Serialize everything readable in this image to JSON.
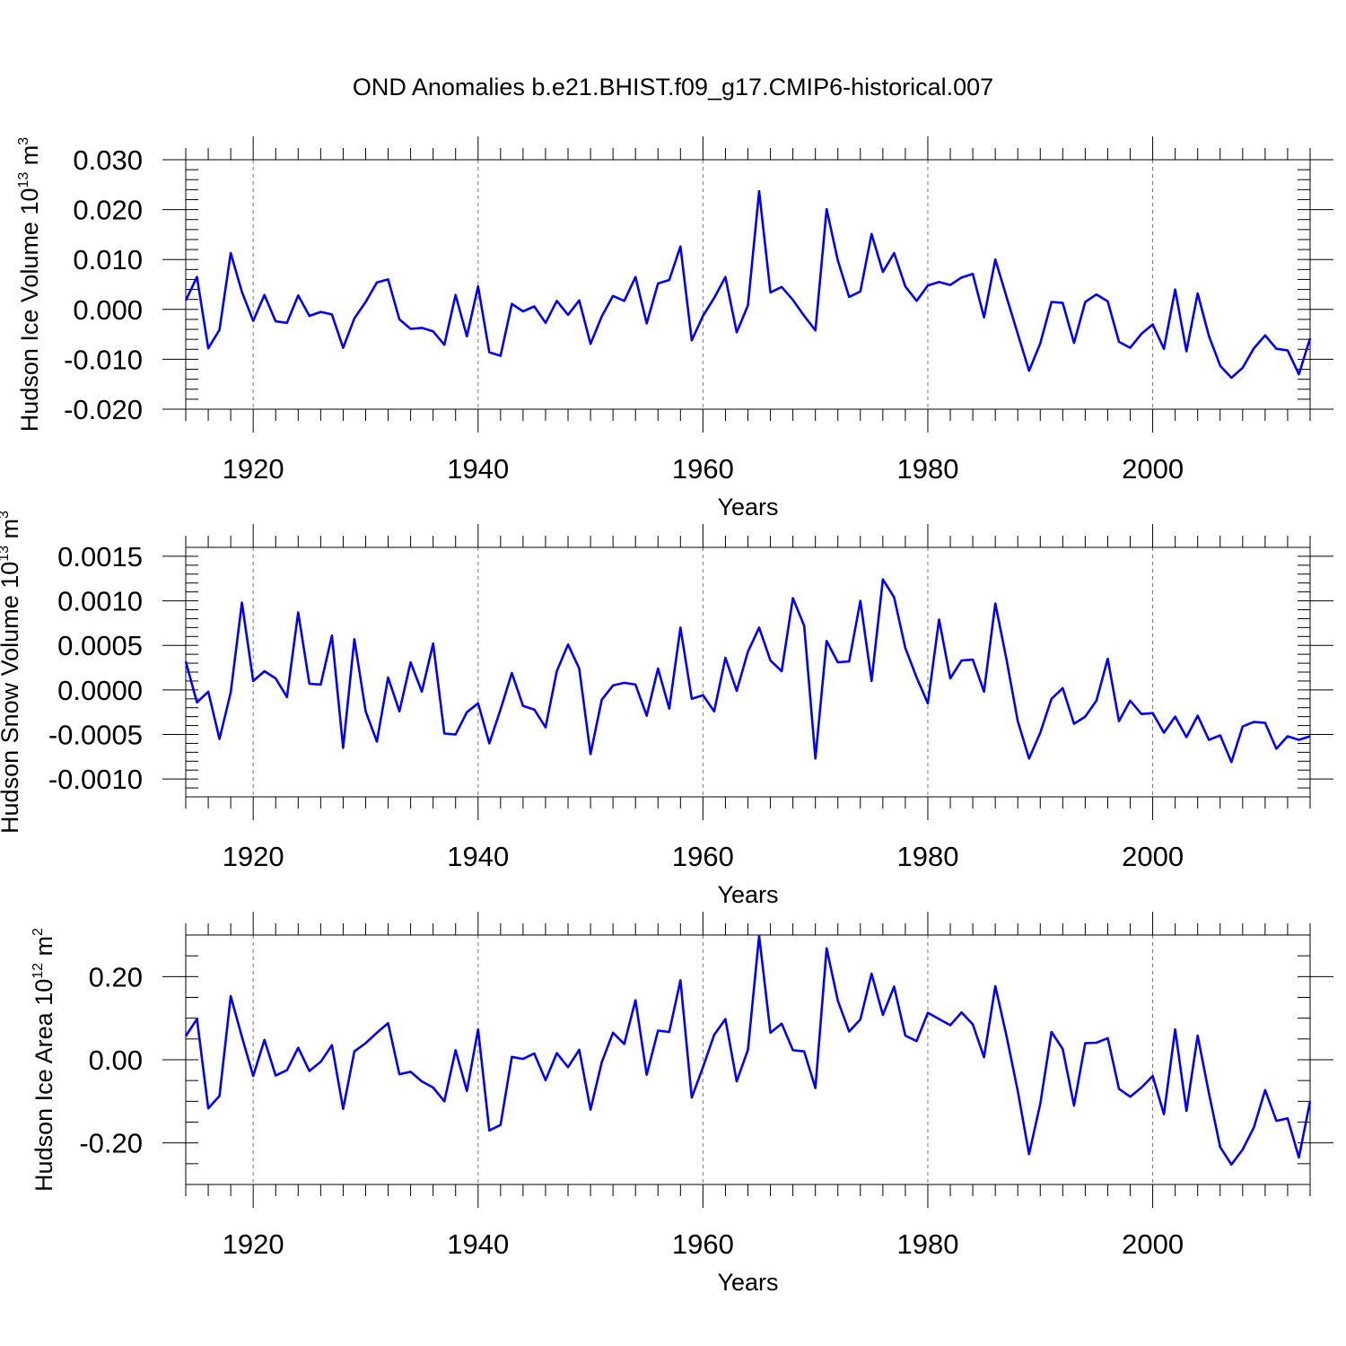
{
  "title": "OND Anomalies b.e21.BHIST.f09_g17.CMIP6-historical.007",
  "chart_data": [
    {
      "type": "line",
      "id": "ice-volume",
      "ylabel_main": "Hudson Ice Volume 10",
      "ylabel_sup": "13",
      "ylabel_unit": " m",
      "ylabel_unit_sup": "3",
      "xlabel": "Years",
      "xlim": [
        1914,
        2014
      ],
      "ylim": [
        -0.02,
        0.03
      ],
      "xticks": [
        1920,
        1940,
        1960,
        1980,
        2000
      ],
      "xtick_labels": [
        "1920",
        "1940",
        "1960",
        "1980",
        "2000"
      ],
      "yticks": [
        -0.02,
        -0.01,
        0.0,
        0.01,
        0.02,
        0.03
      ],
      "ytick_labels": [
        "-0.020",
        "-0.010",
        "0.000",
        "0.010",
        "0.020",
        "0.030"
      ],
      "ymin_step": 0.002,
      "grid": "vertical-dashed",
      "color": "#0000ff",
      "series": [
        {
          "name": "Hudson Ice Volume",
          "x_start": 1914,
          "values": [
            0.0018,
            0.0065,
            -0.0078,
            -0.0041,
            0.0113,
            0.0035,
            -0.0023,
            0.0029,
            -0.0024,
            -0.0027,
            0.0028,
            -0.0013,
            -0.0005,
            -0.001,
            -0.0077,
            -0.0018,
            0.0015,
            0.0054,
            0.006,
            -0.002,
            -0.0039,
            -0.0037,
            -0.0044,
            -0.0071,
            0.0029,
            -0.0054,
            0.0046,
            -0.0086,
            -0.0093,
            0.0011,
            -0.0004,
            0.0006,
            -0.0027,
            0.0017,
            -0.0011,
            0.0018,
            -0.0069,
            -0.0014,
            0.0027,
            0.0017,
            0.0065,
            -0.0028,
            0.0052,
            0.0059,
            0.0126,
            -0.0062,
            -0.0013,
            0.0023,
            0.0065,
            -0.0046,
            0.0008,
            0.0237,
            0.0034,
            0.0045,
            0.0019,
            -0.0013,
            -0.0042,
            0.0201,
            0.0098,
            0.0025,
            0.0036,
            0.0151,
            0.0075,
            0.0113,
            0.0046,
            0.0017,
            0.0048,
            0.0055,
            0.0049,
            0.0064,
            0.0071,
            -0.0016,
            0.01,
            0.0025,
            -0.0049,
            -0.0123,
            -0.0068,
            0.0015,
            0.0013,
            -0.0067,
            0.0015,
            0.003,
            0.0016,
            -0.0065,
            -0.0077,
            -0.0049,
            -0.003,
            -0.0079,
            0.004,
            -0.0084,
            0.0032,
            -0.0053,
            -0.0113,
            -0.0137,
            -0.0117,
            -0.0078,
            -0.0052,
            -0.0079,
            -0.0082,
            -0.013,
            -0.0058
          ]
        }
      ]
    },
    {
      "type": "line",
      "id": "snow-volume",
      "ylabel_main": "Hudson Snow Volume 10",
      "ylabel_sup": "13",
      "ylabel_unit": " m",
      "ylabel_unit_sup": "3",
      "xlabel": "Years",
      "xlim": [
        1914,
        2014
      ],
      "ylim": [
        -0.0012,
        0.0016
      ],
      "xticks": [
        1920,
        1940,
        1960,
        1980,
        2000
      ],
      "xtick_labels": [
        "1920",
        "1940",
        "1960",
        "1980",
        "2000"
      ],
      "yticks": [
        -0.001,
        -0.0005,
        0.0,
        0.0005,
        0.001,
        0.0015
      ],
      "ytick_labels": [
        "-0.0010",
        "-0.0005",
        "0.0000",
        "0.0005",
        "0.0010",
        "0.0015"
      ],
      "ymin_step": 0.0001,
      "grid": "vertical-dashed",
      "color": "#0000ff",
      "series": [
        {
          "name": "Hudson Snow Volume",
          "x_start": 1914,
          "values": [
            0.00032,
            -0.00014,
            -2e-05,
            -0.00055,
            -3e-05,
            0.00098,
            0.0001,
            0.00021,
            0.00013,
            -8e-05,
            0.00087,
            7e-05,
            6e-05,
            0.00061,
            -0.00065,
            0.00057,
            -0.00024,
            -0.00058,
            0.00014,
            -0.00024,
            0.00031,
            -2e-05,
            0.00052,
            -0.00049,
            -0.0005,
            -0.00025,
            -0.00015,
            -0.0006,
            -0.00022,
            0.00019,
            -0.00018,
            -0.00022,
            -0.00042,
            0.00021,
            0.00051,
            0.00024,
            -0.00072,
            -0.00011,
            5e-05,
            8e-05,
            6e-05,
            -0.00029,
            0.00024,
            -0.00021,
            0.0007,
            -0.0001,
            -6e-05,
            -0.00024,
            0.00036,
            -1e-05,
            0.00043,
            0.0007,
            0.00033,
            0.00021,
            0.00103,
            0.00072,
            -0.00077,
            0.00055,
            0.00031,
            0.00032,
            0.001,
            0.0001,
            0.00124,
            0.00104,
            0.00047,
            0.00014,
            -0.00015,
            0.00079,
            0.00013,
            0.00033,
            0.00034,
            -2e-05,
            0.00097,
            0.00034,
            -0.00035,
            -0.00077,
            -0.00048,
            -0.0001,
            2e-05,
            -0.00038,
            -0.0003,
            -0.00012,
            0.00035,
            -0.00035,
            -0.00012,
            -0.00027,
            -0.00026,
            -0.00048,
            -0.0003,
            -0.00053,
            -0.00029,
            -0.00056,
            -0.00051,
            -0.00081,
            -0.00041,
            -0.00036,
            -0.00037,
            -0.00066,
            -0.00052,
            -0.00056,
            -0.00052
          ]
        }
      ]
    },
    {
      "type": "line",
      "id": "ice-area",
      "ylabel_main": "Hudson Ice Area 10",
      "ylabel_sup": "12",
      "ylabel_unit": " m",
      "ylabel_unit_sup": "2",
      "xlabel": "Years",
      "xlim": [
        1914,
        2014
      ],
      "ylim": [
        -0.3,
        0.3
      ],
      "xticks": [
        1920,
        1940,
        1960,
        1980,
        2000
      ],
      "xtick_labels": [
        "1920",
        "1940",
        "1960",
        "1980",
        "2000"
      ],
      "yticks": [
        -0.2,
        0.0,
        0.2
      ],
      "ytick_labels": [
        "-0.20",
        "0.00",
        "0.20"
      ],
      "ymin_step": 0.05,
      "grid": "vertical-dashed",
      "color": "#0000ff",
      "series": [
        {
          "name": "Hudson Ice Area",
          "x_start": 1914,
          "values": [
            0.057,
            0.098,
            -0.117,
            -0.087,
            0.153,
            0.055,
            -0.039,
            0.048,
            -0.038,
            -0.025,
            0.029,
            -0.027,
            -0.005,
            0.035,
            -0.118,
            0.02,
            0.04,
            0.065,
            0.088,
            -0.035,
            -0.029,
            -0.052,
            -0.067,
            -0.1,
            0.023,
            -0.075,
            0.073,
            -0.17,
            -0.157,
            0.007,
            0.002,
            0.015,
            -0.049,
            0.016,
            -0.018,
            0.024,
            -0.12,
            -0.006,
            0.065,
            0.038,
            0.143,
            -0.036,
            0.07,
            0.067,
            0.191,
            -0.091,
            -0.018,
            0.06,
            0.098,
            -0.052,
            0.024,
            0.298,
            0.065,
            0.087,
            0.023,
            0.02,
            -0.068,
            0.268,
            0.142,
            0.068,
            0.097,
            0.207,
            0.108,
            0.176,
            0.058,
            0.045,
            0.113,
            0.098,
            0.083,
            0.114,
            0.085,
            0.006,
            0.177,
            0.057,
            -0.075,
            -0.227,
            -0.106,
            0.067,
            0.026,
            -0.11,
            0.04,
            0.041,
            0.052,
            -0.07,
            -0.089,
            -0.067,
            -0.039,
            -0.131,
            0.073,
            -0.123,
            0.058,
            -0.08,
            -0.21,
            -0.252,
            -0.216,
            -0.163,
            -0.073,
            -0.147,
            -0.141,
            -0.235,
            -0.1
          ]
        }
      ]
    }
  ]
}
